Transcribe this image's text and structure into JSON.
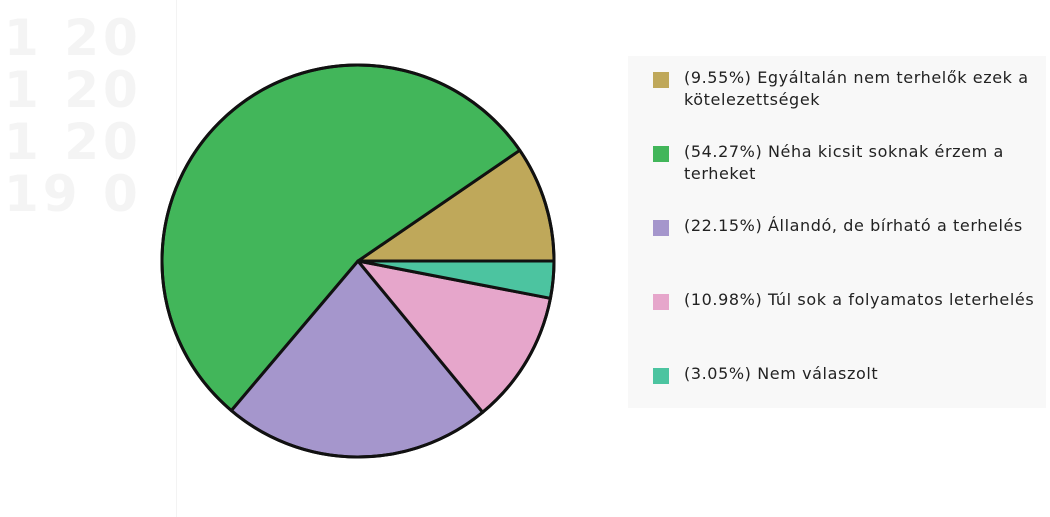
{
  "watermark": [
    "1 20",
    "1 20",
    "1 20",
    "19 0"
  ],
  "chart_data": {
    "type": "pie",
    "title": "",
    "legend_position": "right",
    "categories": [
      "(9.55%) Egyáltalán nem terhelők ezek a kötelezettségek",
      "(54.27%) Néha kicsit soknak érzem a terheket",
      "(22.15%) Állandó, de bírható a terhelés",
      "(10.98%) Túl sok a folyamatos leterhelés",
      "(3.05%) Nem válaszolt"
    ],
    "values": [
      9.55,
      54.27,
      22.15,
      10.98,
      3.05
    ],
    "colors": [
      "#bfa85a",
      "#42b65a",
      "#a596cc",
      "#e6a6cb",
      "#4cc4a0"
    ]
  }
}
